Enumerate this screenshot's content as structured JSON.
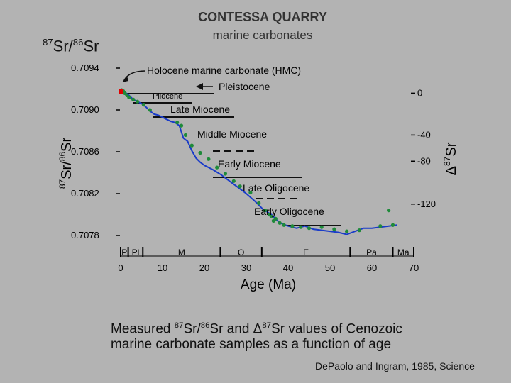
{
  "slide": {
    "title": "CONTESSA QUARRY",
    "subtitle": "marine carbonates",
    "corner_label": {
      "sup1": "87",
      "base1": "Sr/",
      "sup2": "86",
      "base2": "Sr"
    },
    "caption": {
      "line1_a": "Measured ",
      "line1_sup1": "87",
      "line1_b": "Sr/",
      "line1_sup2": "86",
      "line1_c": "Sr and ",
      "line1_delta": "Δ",
      "line1_sup3": "87",
      "line1_d": "Sr values of Cenozoic",
      "line2": "marine carbonate samples as a function of age"
    },
    "citation": "DePaolo and Ingram, 1985, Science"
  },
  "colors": {
    "curve": "#1a3cc8",
    "points": "#1f8a3a",
    "hmc_point": "#e00000",
    "axis": "#000000"
  },
  "chart_data": {
    "type": "line",
    "xlabel": "Age (Ma)",
    "ylabel": {
      "sup1": "87",
      "base1": "Sr/",
      "sup2": "86",
      "base2": "Sr"
    },
    "xlim": [
      0,
      70
    ],
    "ylim": [
      0.7078,
      0.7094
    ],
    "x_ticks": [
      0,
      10,
      20,
      30,
      40,
      50,
      60,
      70
    ],
    "x_tick_labels": [
      "0",
      "10",
      "20",
      "30",
      "40",
      "50",
      "60",
      "70"
    ],
    "y_ticks": [
      0.7094,
      0.709,
      0.7086,
      0.7082,
      0.7078
    ],
    "y_tick_labels": [
      "0.7094",
      "0.7090",
      "0.7086",
      "0.7082",
      "0.7078"
    ],
    "right_axis": {
      "label": {
        "delta": "Δ",
        "sup": "87",
        "base": "Sr"
      },
      "ticks": [
        {
          "label": "0",
          "sr": 0.70916
        },
        {
          "label": "-40",
          "sr": 0.70876
        },
        {
          "label": "-80",
          "sr": 0.70851
        },
        {
          "label": "-120",
          "sr": 0.7081
        }
      ]
    },
    "epochs": [
      {
        "label": "P",
        "start": 0,
        "end": 1.8
      },
      {
        "label": "Pl",
        "start": 1.8,
        "end": 5.3
      },
      {
        "label": "M",
        "start": 5.3,
        "end": 23.8
      },
      {
        "label": "O",
        "start": 23.8,
        "end": 33.7
      },
      {
        "label": "E",
        "start": 33.7,
        "end": 54.8
      },
      {
        "label": "Pa",
        "start": 54.8,
        "end": 65
      },
      {
        "label": "Ma",
        "start": 65,
        "end": 70
      }
    ],
    "series": [
      {
        "type": "line",
        "x": [
          0,
          1,
          2,
          3,
          4,
          5,
          6,
          7,
          8,
          9,
          10,
          11,
          12,
          13,
          14,
          15,
          16,
          17,
          18,
          19,
          20,
          22,
          24,
          26,
          28,
          30,
          32,
          34,
          36,
          38,
          40,
          42,
          44,
          46,
          48,
          50,
          52,
          54,
          56,
          58,
          60,
          62,
          64,
          66
        ],
        "y": [
          0.70918,
          0.70917,
          0.70914,
          0.7091,
          0.70908,
          0.70906,
          0.70903,
          0.70899,
          0.70896,
          0.70895,
          0.70893,
          0.70891,
          0.70889,
          0.70888,
          0.70885,
          0.70873,
          0.7087,
          0.70861,
          0.70854,
          0.7085,
          0.70847,
          0.70843,
          0.70838,
          0.70832,
          0.70826,
          0.7082,
          0.70813,
          0.70805,
          0.708,
          0.70792,
          0.70789,
          0.70787,
          0.70789,
          0.70786,
          0.70785,
          0.70784,
          0.70783,
          0.70781,
          0.70784,
          0.70787,
          0.70787,
          0.70788,
          0.70789,
          0.7079
        ]
      },
      {
        "type": "scatter",
        "x": [
          0.2,
          0.6,
          1,
          1.5,
          2,
          3,
          4,
          5.5,
          7,
          13.5,
          14.5,
          15.5,
          17,
          19,
          21,
          23,
          25,
          27,
          28.5,
          31,
          33,
          34.5,
          35.5,
          36,
          36.5,
          37,
          38,
          39,
          41,
          43,
          45,
          48,
          51,
          54,
          57,
          62,
          64,
          65
        ],
        "y": [
          0.70919,
          0.70918,
          0.70916,
          0.70914,
          0.70912,
          0.7091,
          0.70908,
          0.70905,
          0.709,
          0.70888,
          0.70885,
          0.70876,
          0.70866,
          0.70859,
          0.70853,
          0.70845,
          0.70839,
          0.70832,
          0.70827,
          0.70821,
          0.70811,
          0.70804,
          0.708,
          0.70798,
          0.70794,
          0.70796,
          0.70792,
          0.7079,
          0.70789,
          0.70788,
          0.70787,
          0.70788,
          0.70786,
          0.70784,
          0.70785,
          0.70789,
          0.70804,
          0.7079
        ]
      },
      {
        "type": "scatter",
        "x": [
          0
        ],
        "y": [
          0.70917
        ]
      }
    ],
    "annotations": [
      {
        "text": "Holocene marine carbonate (HMC)"
      },
      {
        "text": "Pleistocene"
      },
      {
        "text": "Pliocene"
      },
      {
        "text": "Late Miocene"
      },
      {
        "text": "Middle Miocene"
      },
      {
        "text": "Early Miocene"
      },
      {
        "text": "Late Oligocene"
      },
      {
        "text": "Early Oligocene"
      }
    ]
  }
}
